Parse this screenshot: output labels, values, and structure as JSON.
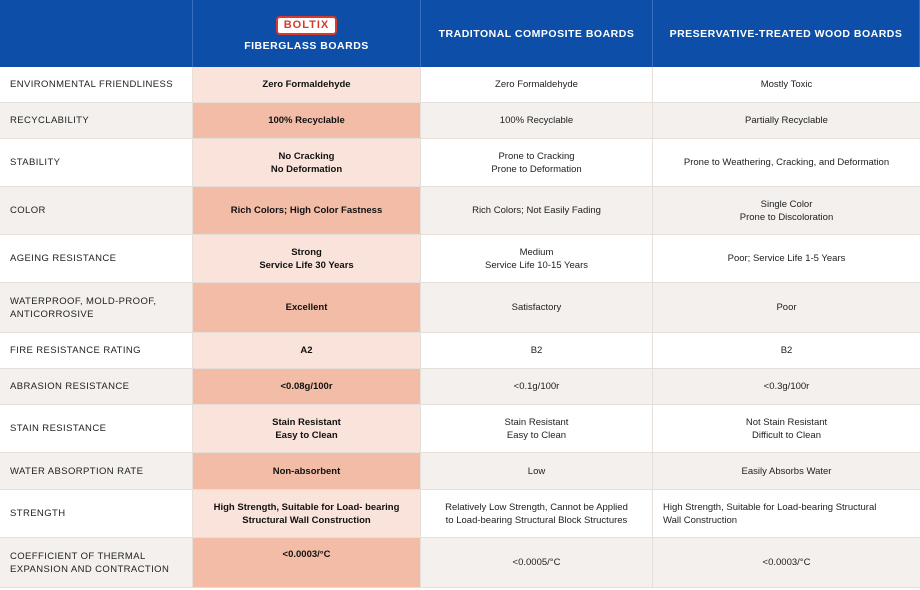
{
  "header": {
    "logo_text": "BOLTIX",
    "col1": "FIBERGLASS BOARDS",
    "col2": "TRADITONAL COMPOSITE BOARDS",
    "col3": "PRESERVATIVE-TREATED WOOD BOARDS"
  },
  "rows": [
    {
      "label": "ENVIRONMENTAL FRIENDLINESS",
      "fg": [
        "Zero Formaldehyde"
      ],
      "comp": [
        "Zero Formaldehyde"
      ],
      "wood": [
        "Mostly Toxic"
      ]
    },
    {
      "label": "RECYCLABILITY",
      "fg": [
        "100% Recyclable"
      ],
      "comp": [
        "100% Recyclable"
      ],
      "wood": [
        "Partially Recyclable"
      ]
    },
    {
      "label": "STABILITY",
      "fg": [
        "No Cracking",
        "No Deformation"
      ],
      "comp": [
        "Prone to Cracking",
        "Prone to Deformation"
      ],
      "wood": [
        "Prone to Weathering, Cracking, and Deformation"
      ]
    },
    {
      "label": "COLOR",
      "fg": [
        "Rich Colors; High Color Fastness"
      ],
      "comp": [
        "Rich Colors; Not Easily Fading"
      ],
      "wood": [
        "Single Color",
        "Prone to Discoloration"
      ]
    },
    {
      "label": "AGEING RESISTANCE",
      "fg": [
        "Strong",
        "Service Life 30 Years"
      ],
      "comp": [
        "Medium",
        "Service Life 10-15 Years"
      ],
      "wood": [
        "Poor; Service Life 1-5 Years"
      ]
    },
    {
      "label": [
        "WATERPROOF, MOLD-PROOF,",
        "ANTICORROSIVE"
      ],
      "fg": [
        "Excellent"
      ],
      "comp": [
        "Satisfactory"
      ],
      "wood": [
        "Poor"
      ]
    },
    {
      "label": "FIRE RESISTANCE RATING",
      "fg": [
        "A2"
      ],
      "comp": [
        "B2"
      ],
      "wood": [
        "B2"
      ]
    },
    {
      "label": "ABRASION RESISTANCE",
      "fg": [
        "<0.08g/100r"
      ],
      "comp": [
        "<0.1g/100r"
      ],
      "wood": [
        "<0.3g/100r"
      ]
    },
    {
      "label": "STAIN RESISTANCE",
      "fg": [
        "Stain Resistant",
        "Easy to Clean"
      ],
      "comp": [
        "Stain Resistant",
        "Easy to Clean"
      ],
      "wood": [
        "Not Stain Resistant",
        "Difficult to Clean"
      ]
    },
    {
      "label": "WATER ABSORPTION RATE",
      "fg": [
        "Non-absorbent"
      ],
      "comp": [
        "Low"
      ],
      "wood": [
        "Easily Absorbs Water"
      ]
    },
    {
      "label": "STRENGTH",
      "fg": [
        "High Strength, Suitable for Load- bearing",
        "Structural Wall Construction"
      ],
      "comp": [
        "Relatively Low Strength, Cannot be Applied",
        "to Load-bearing Structural Block Structures"
      ],
      "wood": [
        "High Strength, Suitable for Load-bearing Structural",
        "Wall Construction"
      ]
    },
    {
      "label": [
        "COEFFICIENT OF THERMAL",
        "EXPANSION AND CONTRACTION"
      ],
      "fg": [
        "<0.0003/°C"
      ],
      "comp": [
        "<0.0005/°C"
      ],
      "wood": [
        "<0.0003/°C"
      ]
    }
  ]
}
